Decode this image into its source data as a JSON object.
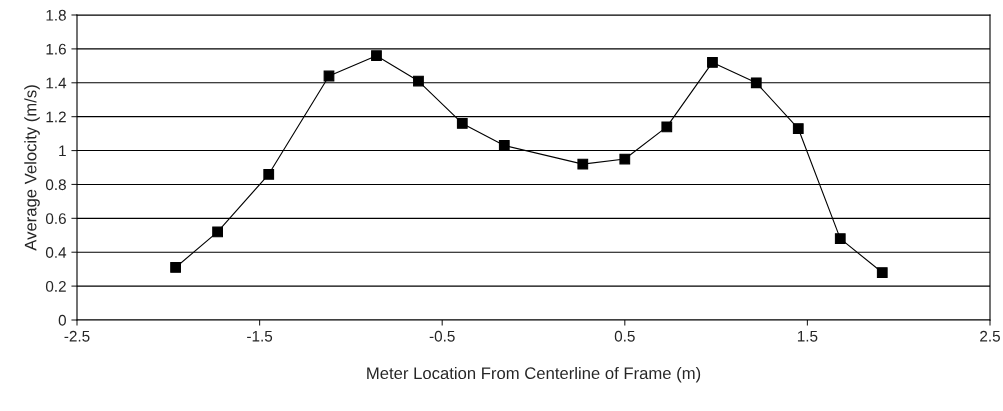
{
  "chart_data": {
    "type": "line",
    "xlabel": "Meter Location From Centerline of Frame (m)",
    "ylabel": "Average Velocity (m/s)",
    "x": [
      -1.96,
      -1.73,
      -1.45,
      -1.12,
      -0.86,
      -0.63,
      -0.39,
      -0.16,
      0.27,
      0.5,
      0.73,
      0.98,
      1.22,
      1.45,
      1.68,
      1.91
    ],
    "series": [
      {
        "color": "#000000",
        "values": [
          0.31,
          0.52,
          0.86,
          1.44,
          1.56,
          1.41,
          1.16,
          1.03,
          0.92,
          0.95,
          1.14,
          1.52,
          1.4,
          1.13,
          0.48,
          0.28
        ]
      }
    ],
    "xlim": [
      -2.5,
      2.5
    ],
    "xticks": [
      -2.5,
      -1.5,
      -0.5,
      0.5,
      1.5,
      2.5
    ],
    "ylim": [
      0,
      1.8
    ],
    "yticks": [
      0,
      0.2,
      0.4,
      0.6,
      0.8,
      1,
      1.2,
      1.4,
      1.6,
      1.8
    ],
    "grid": "y",
    "marker": "square",
    "line_style": "solid",
    "legend": false
  }
}
